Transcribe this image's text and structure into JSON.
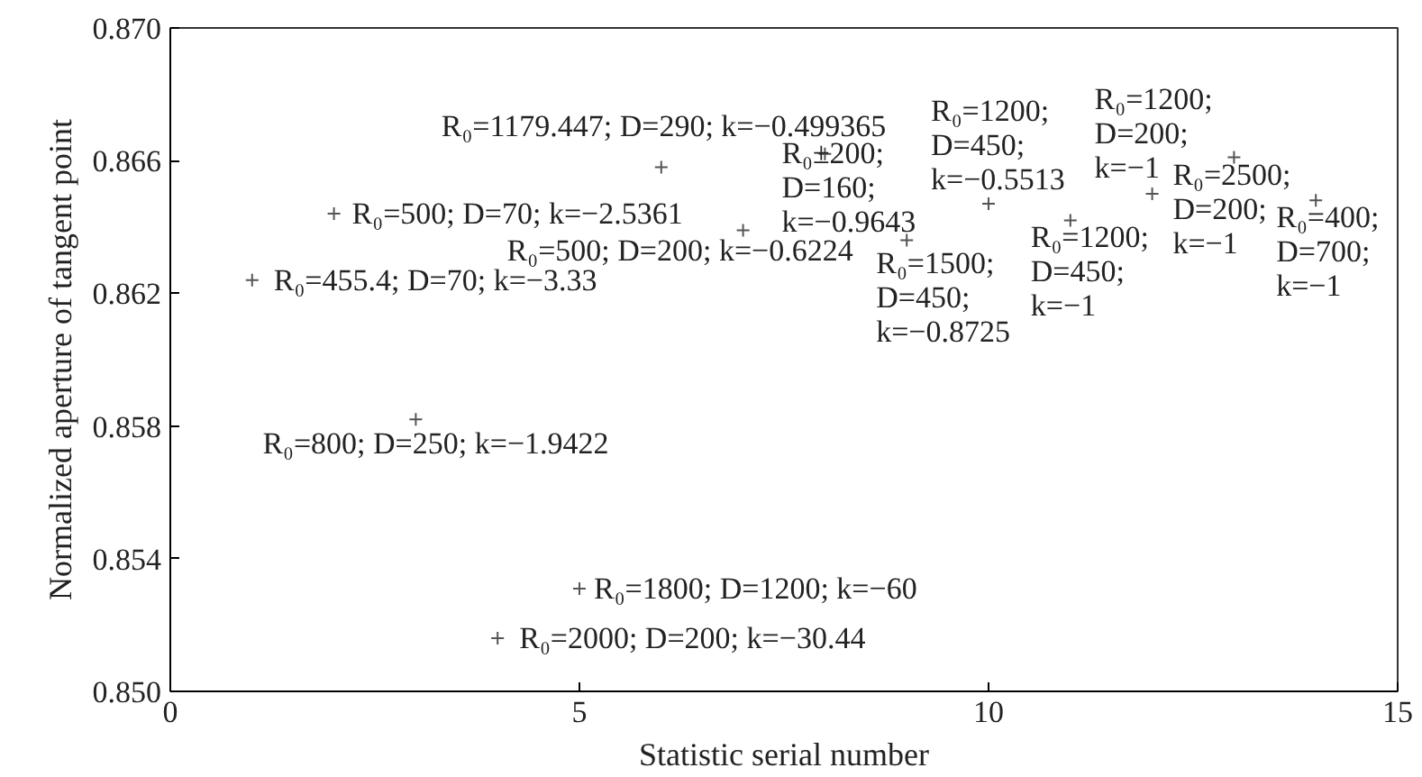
{
  "chart_data": {
    "type": "scatter",
    "xlabel": "Statistic serial number",
    "ylabel": "Normalized aperture of tangent point",
    "x": [
      1,
      2,
      3,
      4,
      5,
      6,
      7,
      8,
      9,
      10,
      11,
      12,
      13,
      14
    ],
    "series": [
      {
        "color": "#555555",
        "values": [
          0.8624,
          0.8644,
          0.8582,
          0.8516,
          0.8531,
          0.8658,
          0.8639,
          0.8662,
          0.8636,
          0.8647,
          0.8642,
          0.865,
          0.8661,
          0.8648
        ]
      }
    ],
    "marker": "cross",
    "grid": false,
    "xlim": [
      0,
      15
    ],
    "xticks": [
      0,
      5,
      10,
      15
    ],
    "ylim": [
      0.85,
      0.87
    ],
    "yticks": [
      {
        "value": 0.85,
        "label": "0.850"
      },
      {
        "value": 0.854,
        "label": "0.854"
      },
      {
        "value": 0.858,
        "label": "0.858"
      },
      {
        "value": 0.862,
        "label": "0.862"
      },
      {
        "value": 0.866,
        "label": "0.866"
      },
      {
        "value": 0.87,
        "label": "0.870"
      }
    ],
    "annotations": [
      {
        "text": "R₀=455.4; D=70; k=−3.33",
        "x": 1,
        "y": 0.8624
      },
      {
        "text": "R₀=500; D=70; k=−2.5361",
        "x": 2,
        "y": 0.8644
      },
      {
        "text": "R₀=800; D=250; k=−1.9422",
        "x": 3,
        "y": 0.8582
      },
      {
        "text": "R₀=2000; D=200; k=−30.44",
        "x": 4,
        "y": 0.8516
      },
      {
        "text": "R₀=1800; D=1200; k=−60",
        "x": 5,
        "y": 0.8531
      },
      {
        "text": "R₀=1179.447; D=290; k=−0.499365",
        "x": 6,
        "y": 0.8658
      },
      {
        "text": "R₀=500; D=200; k=−0.6224",
        "x": 7,
        "y": 0.8639
      },
      {
        "text": "R₀±200; D=160; k=−0.9643",
        "x": 8,
        "y": 0.8662
      },
      {
        "text": "R₀=1500; D=450; k=−0.8725",
        "x": 9,
        "y": 0.8636
      },
      {
        "text": "R₀=1200; D=450; k=−0.5513",
        "x": 10,
        "y": 0.8647
      },
      {
        "text": "R₀=1200; D=450; k=−1",
        "x": 11,
        "y": 0.8642
      },
      {
        "text": "R₀=1200; D=200; k=−1",
        "x": 12,
        "y": 0.865
      },
      {
        "text": "R₀=2500; D=200; k=−1",
        "x": 13,
        "y": 0.8661
      },
      {
        "text": "R₀=400; D=700; k=−1",
        "x": 14,
        "y": 0.8648
      }
    ]
  }
}
